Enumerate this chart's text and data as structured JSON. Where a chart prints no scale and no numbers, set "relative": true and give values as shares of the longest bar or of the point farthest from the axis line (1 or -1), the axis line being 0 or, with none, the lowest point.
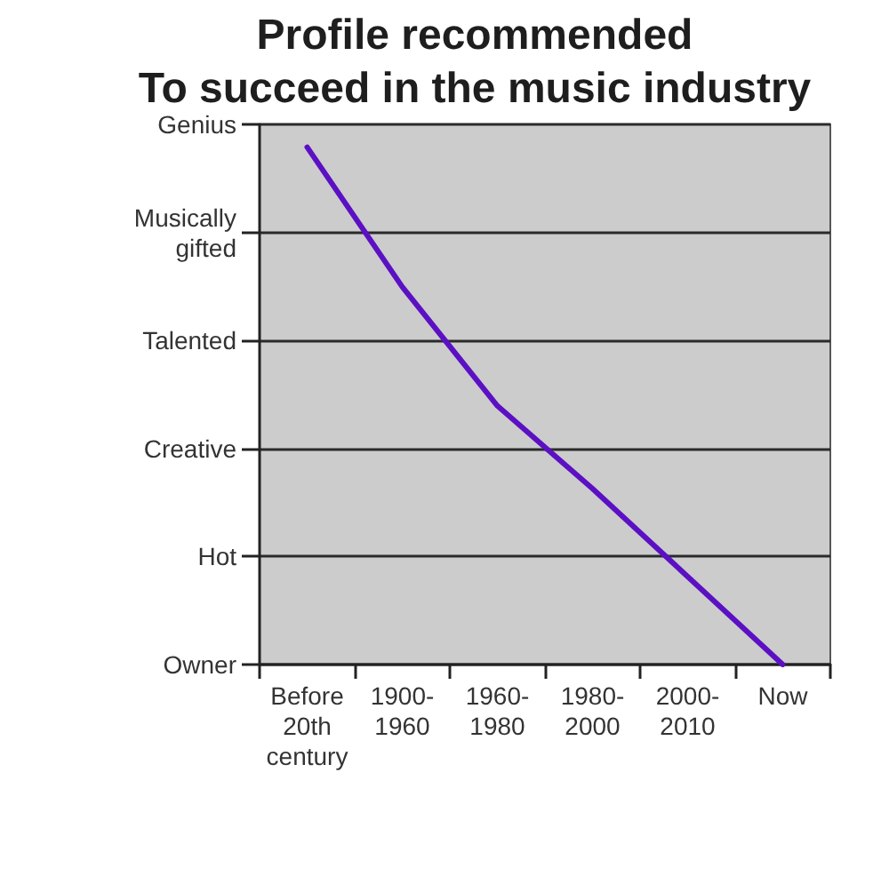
{
  "chart_data": {
    "type": "line",
    "title": "Profile recommended\nTo succeed in the music industry",
    "categories": [
      "Before 20th century",
      "1900-1960",
      "1960-1980",
      "1980-2000",
      "2000-2010",
      "Now"
    ],
    "y_categories": [
      "Genius",
      "Musically gifted",
      "Talented",
      "Creative",
      "Hot",
      "Owner"
    ],
    "values": [
      1,
      0.73,
      0.5,
      0.34,
      0.17,
      0
    ],
    "relative": true,
    "color": "#5c10c4",
    "grid": "y",
    "marker": "none",
    "line_style": "solid"
  }
}
